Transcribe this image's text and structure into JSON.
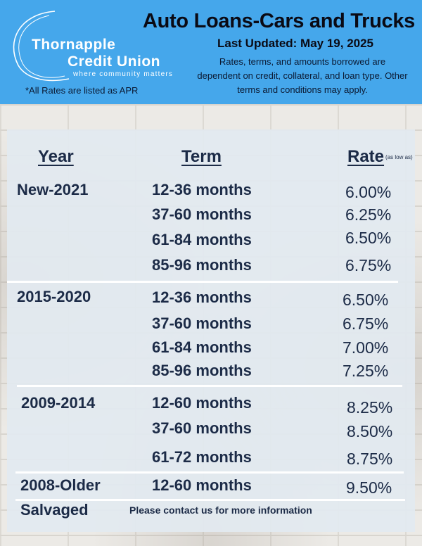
{
  "header": {
    "logo_line1": "Thornapple",
    "logo_line2": "Credit Union",
    "logo_tagline": "where community matters",
    "apr_note": "*All Rates are listed as APR",
    "title": "Auto Loans-Cars and Trucks",
    "last_updated": "Last Updated: May 19, 2025",
    "disclaimer": "Rates, terms, and amounts borrowed are dependent on credit, collateral, and loan type. Other terms and conditions may apply."
  },
  "columns": {
    "year": "Year",
    "term": "Term",
    "rate": "Rate",
    "rate_note": "(as low as)"
  },
  "groups": [
    {
      "year": "New-2021",
      "rows": [
        {
          "term": "12-36 months",
          "rate": "6.00%"
        },
        {
          "term": "37-60 months",
          "rate": "6.25%"
        },
        {
          "term": "61-84 months",
          "rate": "6.50%"
        },
        {
          "term": "85-96 months",
          "rate": "6.75%"
        }
      ]
    },
    {
      "year": "2015-2020",
      "rows": [
        {
          "term": "12-36 months",
          "rate": "6.50%"
        },
        {
          "term": "37-60 months",
          "rate": "6.75%"
        },
        {
          "term": "61-84 months",
          "rate": "7.00%"
        },
        {
          "term": "85-96 months",
          "rate": "7.25%"
        }
      ]
    },
    {
      "year": "2009-2014",
      "rows": [
        {
          "term": "12-60 months",
          "rate": "8.25%"
        },
        {
          "term": "37-60 months",
          "rate": "8.50%"
        },
        {
          "term": "61-72 months",
          "rate": "8.75%"
        }
      ]
    },
    {
      "year": "2008-Older",
      "rows": [
        {
          "term": "12-60 months",
          "rate": "9.50%"
        }
      ]
    }
  ],
  "salvaged": {
    "label": "Salvaged",
    "note": "Please contact us for more information"
  },
  "colors": {
    "header_blue": "#45a7eb",
    "text_navy": "#1c2b47",
    "panel": "#e2e9f0"
  }
}
